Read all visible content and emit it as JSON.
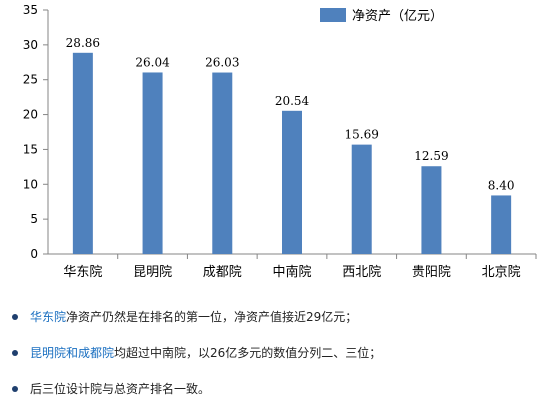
{
  "chart_data": {
    "type": "bar",
    "categories": [
      "华东院",
      "昆明院",
      "成都院",
      "中南院",
      "西北院",
      "贵阳院",
      "北京院"
    ],
    "series": [
      {
        "name": "净资产（亿元）",
        "values": [
          28.86,
          26.04,
          26.03,
          20.54,
          15.69,
          12.59,
          8.4
        ]
      }
    ],
    "value_labels": [
      "28.86",
      "26.04",
      "26.03",
      "20.54",
      "15.69",
      "12.59",
      "8.40"
    ],
    "ylim": [
      0,
      35
    ],
    "yticks": [
      0,
      5,
      10,
      15,
      20,
      25,
      30,
      35
    ],
    "grid": false,
    "legend_position": "top-right",
    "bar_color": "#4f81bd"
  },
  "notes": [
    {
      "highlight": "华东院",
      "text": "净资产仍然是在排名的第一位，净资产值接近29亿元；"
    },
    {
      "highlight": "昆明院和成都院",
      "text": "均超过中南院，以26亿多元的数值分列二、三位；"
    },
    {
      "highlight": "",
      "text": "后三位设计院与总资产排名一致。"
    }
  ]
}
